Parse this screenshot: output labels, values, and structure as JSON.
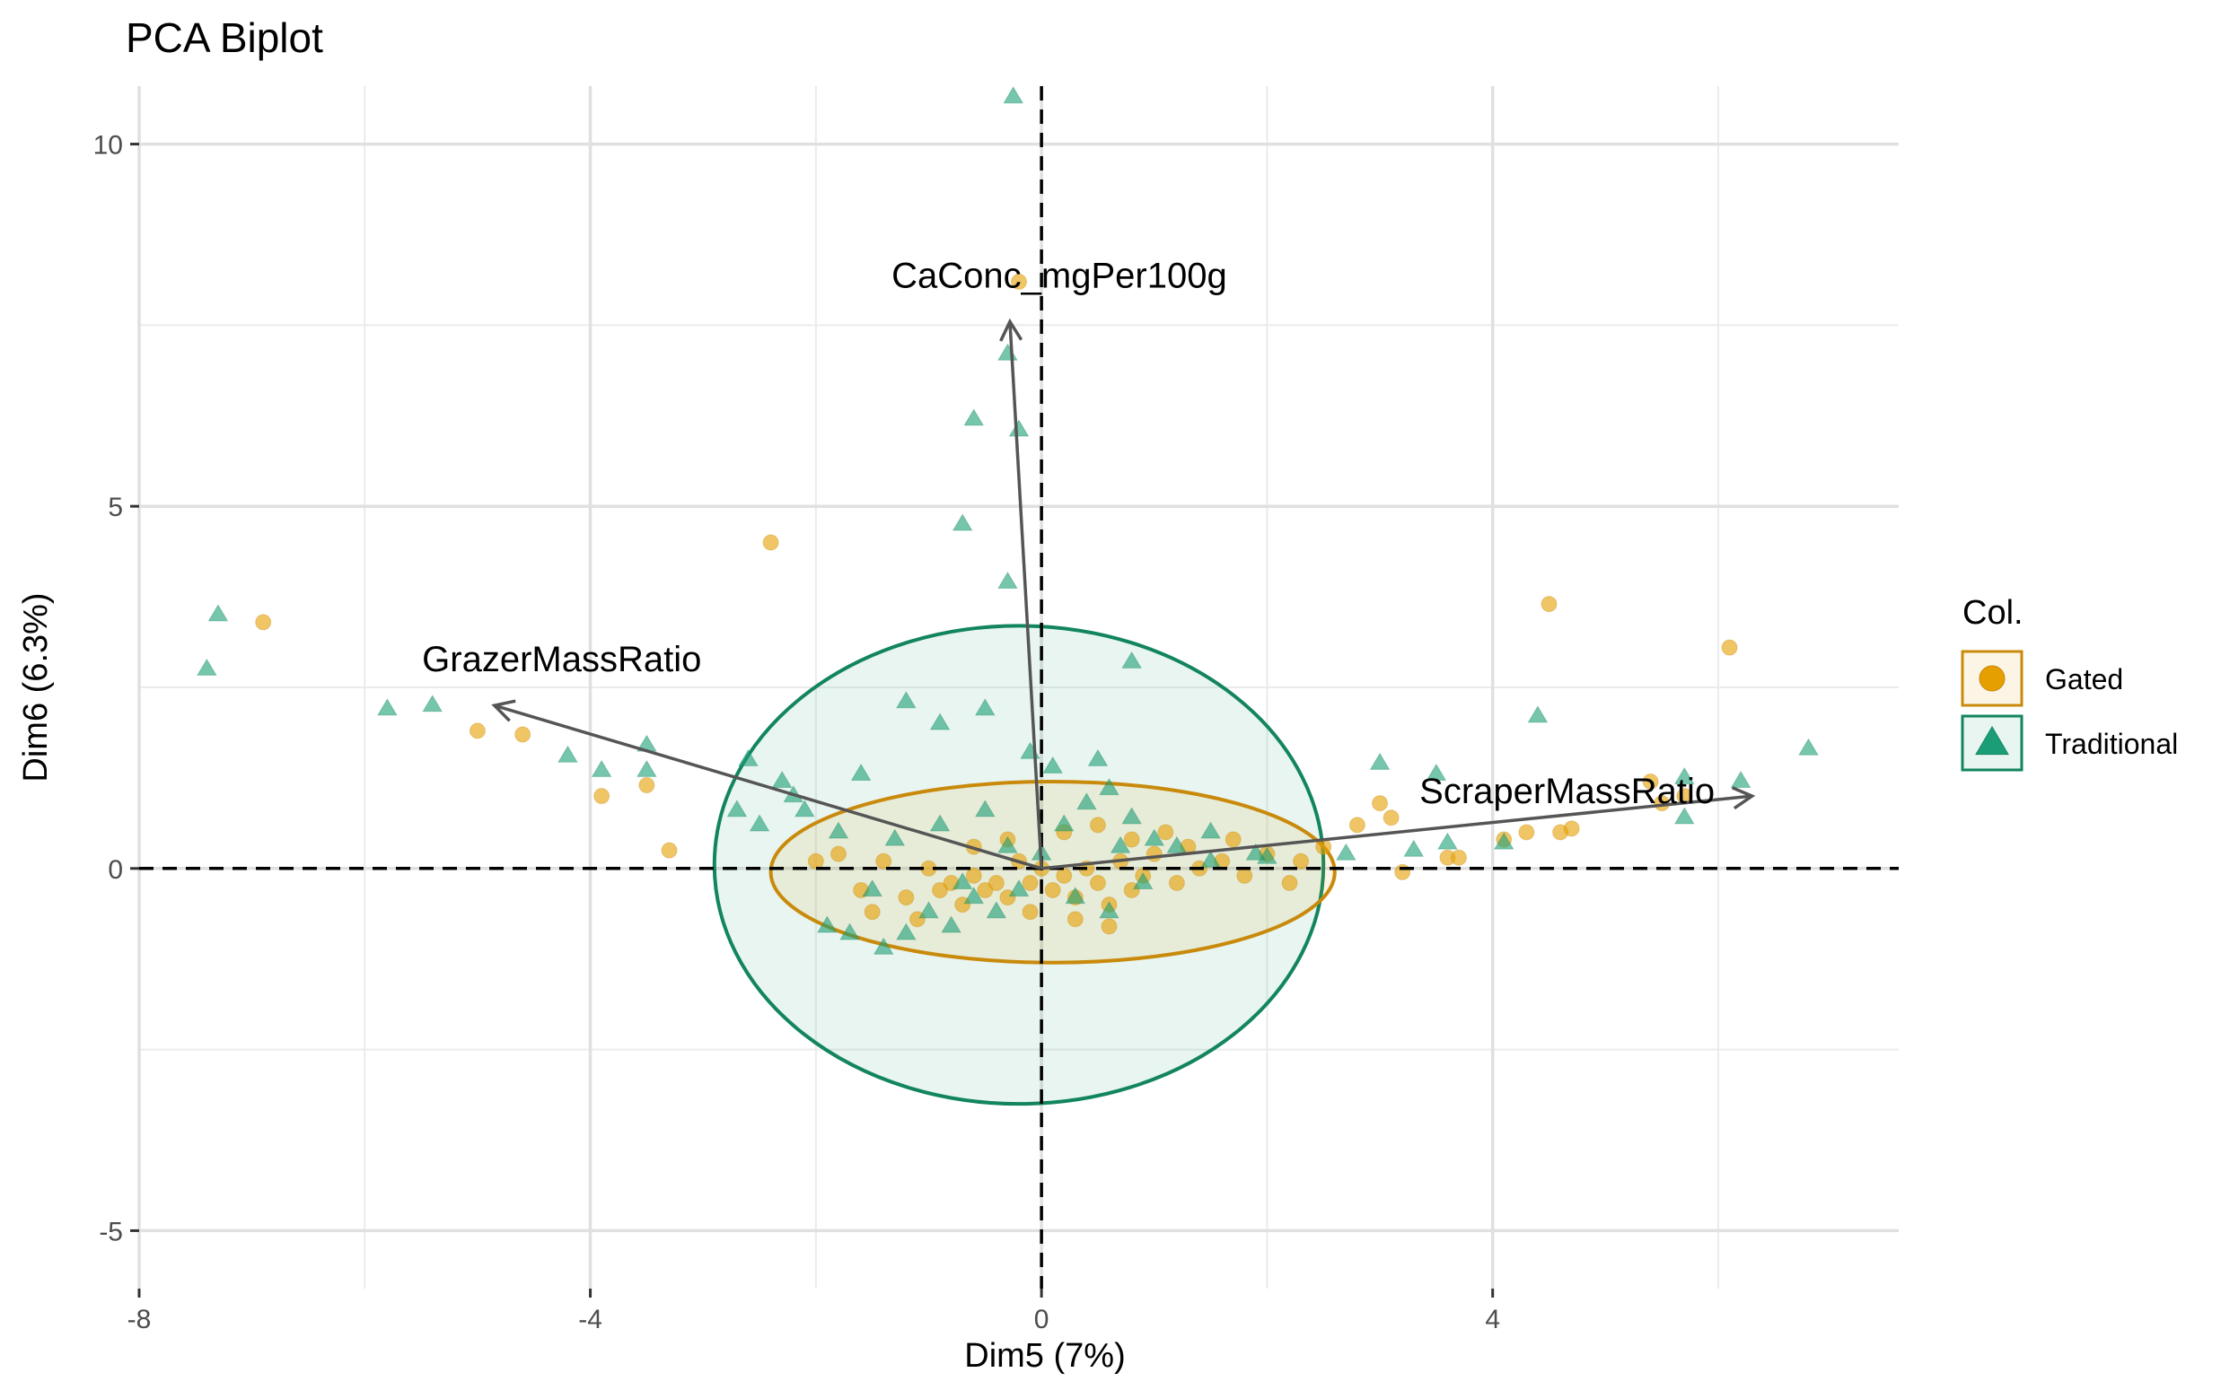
{
  "chart_data": {
    "type": "scatter",
    "title": "PCA Biplot",
    "xlabel": "Dim5 (7%)",
    "ylabel": "Dim6 (6.3%)",
    "xlim": [
      -8,
      7.6
    ],
    "ylim": [
      -5.8,
      10.8
    ],
    "x_ticks": [
      -8,
      -4,
      0,
      4
    ],
    "x_tick_labels": [
      "-8",
      "-4",
      "0",
      "4"
    ],
    "y_ticks": [
      -5,
      0,
      5,
      10
    ],
    "y_tick_labels": [
      "-5",
      "0",
      "5",
      "10"
    ],
    "grid": true,
    "legend": {
      "title": "Col.",
      "position": "right"
    },
    "series": [
      {
        "name": "Gated",
        "color": "#E69F00",
        "edge_color": "#C98A0B",
        "marker": "circle",
        "points": [
          [
            -6.9,
            3.4
          ],
          [
            -2.4,
            4.5
          ],
          [
            -0.2,
            8.1
          ],
          [
            4.5,
            3.65
          ],
          [
            6.1,
            3.05
          ],
          [
            -5.0,
            1.9
          ],
          [
            -4.6,
            1.85
          ],
          [
            -3.9,
            1.0
          ],
          [
            -3.5,
            1.15
          ],
          [
            -3.3,
            0.25
          ],
          [
            4.7,
            0.55
          ],
          [
            4.6,
            0.5
          ],
          [
            5.4,
            1.2
          ],
          [
            5.5,
            0.9
          ],
          [
            5.7,
            1.0
          ],
          [
            3.0,
            0.9
          ],
          [
            3.6,
            0.15
          ],
          [
            3.7,
            0.15
          ],
          [
            4.1,
            0.4
          ],
          [
            4.3,
            0.5
          ],
          [
            3.1,
            0.7
          ],
          [
            2.5,
            0.3
          ],
          [
            2.3,
            0.1
          ],
          [
            2.8,
            0.6
          ],
          [
            3.2,
            -0.05
          ],
          [
            -1.8,
            0.2
          ],
          [
            -1.6,
            -0.3
          ],
          [
            -1.4,
            0.1
          ],
          [
            -1.2,
            -0.4
          ],
          [
            -1.0,
            0.0
          ],
          [
            -0.9,
            -0.3
          ],
          [
            -0.8,
            -0.2
          ],
          [
            -0.7,
            -0.5
          ],
          [
            -0.6,
            -0.1
          ],
          [
            -0.5,
            -0.3
          ],
          [
            -0.4,
            -0.2
          ],
          [
            -0.3,
            -0.4
          ],
          [
            -0.2,
            0.1
          ],
          [
            -0.1,
            -0.2
          ],
          [
            0.0,
            0.0
          ],
          [
            0.1,
            -0.3
          ],
          [
            0.2,
            -0.1
          ],
          [
            0.3,
            -0.4
          ],
          [
            0.4,
            0.0
          ],
          [
            0.5,
            -0.2
          ],
          [
            0.6,
            -0.5
          ],
          [
            0.7,
            0.1
          ],
          [
            0.8,
            -0.3
          ],
          [
            0.9,
            -0.1
          ],
          [
            1.0,
            0.2
          ],
          [
            1.2,
            -0.2
          ],
          [
            1.4,
            0.0
          ],
          [
            1.6,
            0.1
          ],
          [
            1.8,
            -0.1
          ],
          [
            2.0,
            0.2
          ],
          [
            0.2,
            0.5
          ],
          [
            0.5,
            0.6
          ],
          [
            0.8,
            0.4
          ],
          [
            1.1,
            0.5
          ],
          [
            -0.3,
            0.4
          ],
          [
            -0.6,
            0.3
          ],
          [
            -1.1,
            -0.7
          ],
          [
            -1.5,
            -0.6
          ],
          [
            0.3,
            -0.7
          ],
          [
            0.6,
            -0.8
          ],
          [
            -0.1,
            -0.6
          ],
          [
            1.3,
            0.3
          ],
          [
            1.7,
            0.4
          ],
          [
            2.2,
            -0.2
          ],
          [
            -2.0,
            0.1
          ]
        ]
      },
      {
        "name": "Traditional",
        "color": "#1B9E77",
        "edge_color": "#12855F",
        "marker": "triangle",
        "points": [
          [
            -7.4,
            2.75
          ],
          [
            -7.3,
            3.5
          ],
          [
            -5.8,
            2.2
          ],
          [
            -5.4,
            2.25
          ],
          [
            -4.2,
            1.55
          ],
          [
            -3.9,
            1.35
          ],
          [
            -3.5,
            1.7
          ],
          [
            -3.5,
            1.35
          ],
          [
            -0.25,
            10.65
          ],
          [
            -0.3,
            7.1
          ],
          [
            -0.6,
            6.2
          ],
          [
            -0.2,
            6.05
          ],
          [
            -0.7,
            4.75
          ],
          [
            -0.3,
            3.95
          ],
          [
            0.8,
            2.85
          ],
          [
            -1.2,
            2.3
          ],
          [
            -0.5,
            2.2
          ],
          [
            -0.9,
            2.0
          ],
          [
            -2.6,
            1.5
          ],
          [
            -2.3,
            1.2
          ],
          [
            -1.6,
            1.3
          ],
          [
            4.4,
            2.1
          ],
          [
            6.8,
            1.65
          ],
          [
            6.2,
            1.2
          ],
          [
            5.7,
            1.25
          ],
          [
            5.7,
            0.7
          ],
          [
            3.0,
            1.45
          ],
          [
            3.5,
            1.3
          ],
          [
            3.6,
            0.35
          ],
          [
            4.1,
            0.35
          ],
          [
            3.3,
            0.25
          ],
          [
            2.7,
            0.2
          ],
          [
            2.0,
            0.15
          ],
          [
            1.5,
            0.1
          ],
          [
            -2.7,
            0.8
          ],
          [
            -2.5,
            0.6
          ],
          [
            -2.2,
            1.0
          ],
          [
            -1.9,
            -0.8
          ],
          [
            -1.7,
            -0.9
          ],
          [
            -1.4,
            -1.1
          ],
          [
            -1.2,
            -0.9
          ],
          [
            -1.0,
            -0.6
          ],
          [
            -0.8,
            -0.8
          ],
          [
            -0.6,
            -0.4
          ],
          [
            -0.4,
            -0.6
          ],
          [
            -0.2,
            -0.3
          ],
          [
            0.0,
            0.2
          ],
          [
            0.2,
            0.6
          ],
          [
            0.4,
            0.9
          ],
          [
            0.6,
            1.1
          ],
          [
            0.8,
            0.7
          ],
          [
            1.0,
            0.4
          ],
          [
            1.2,
            0.3
          ],
          [
            1.5,
            0.5
          ],
          [
            0.3,
            -0.4
          ],
          [
            0.6,
            -0.6
          ],
          [
            0.9,
            -0.2
          ],
          [
            -1.3,
            0.4
          ],
          [
            -0.9,
            0.6
          ],
          [
            -0.5,
            0.8
          ],
          [
            -0.1,
            1.6
          ],
          [
            0.1,
            1.4
          ],
          [
            0.5,
            1.5
          ],
          [
            -1.8,
            0.5
          ],
          [
            -2.1,
            0.8
          ],
          [
            -0.7,
            -0.2
          ],
          [
            -0.3,
            0.3
          ],
          [
            0.7,
            0.3
          ],
          [
            1.9,
            0.2
          ],
          [
            -1.5,
            -0.3
          ]
        ]
      }
    ],
    "ellipses": [
      {
        "series": "Traditional",
        "cx": -0.2,
        "cy": 0.05,
        "rx": 2.7,
        "ry": 3.3,
        "color": "#12855F",
        "fill": "#1B9E77"
      },
      {
        "series": "Gated",
        "cx": 0.1,
        "cy": -0.05,
        "rx": 2.5,
        "ry": 1.25,
        "color": "#C98A0B",
        "fill": "#E69F00"
      }
    ],
    "variables": [
      {
        "name": "CaConc_mgPer100g",
        "x": -0.28,
        "y": 7.55
      },
      {
        "name": "GrazerMassRatio",
        "x": -4.85,
        "y": 2.25
      },
      {
        "name": "ScraperMassRatio",
        "x": 6.3,
        "y": 1.0
      }
    ]
  }
}
